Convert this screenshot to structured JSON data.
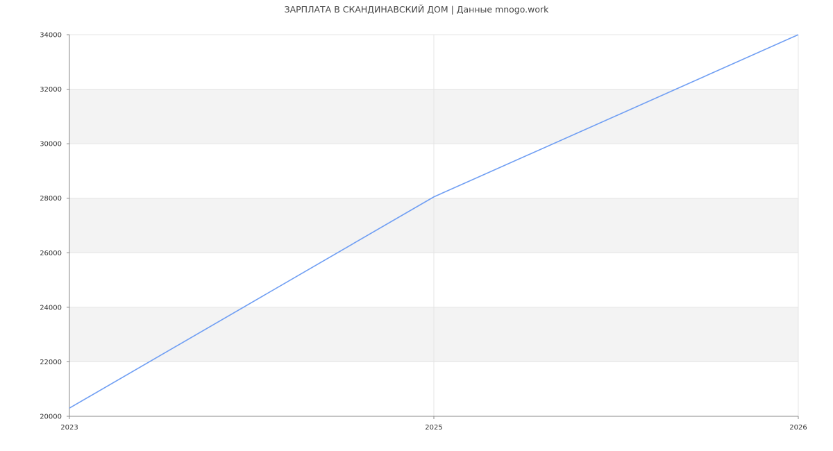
{
  "chart_data": {
    "type": "line",
    "title": "ЗАРПЛАТА В  СКАНДИНАВСКИЙ ДОМ | Данные mnogo.work",
    "xlabel": "",
    "ylabel": "",
    "categories": [
      "2023",
      "2025",
      "2026"
    ],
    "series": [
      {
        "values": [
          20300,
          28050,
          34000
        ]
      }
    ],
    "ylim": [
      20000,
      34000
    ],
    "yticks": [
      20000,
      22000,
      24000,
      26000,
      28000,
      30000,
      32000,
      34000
    ],
    "grid": true,
    "legend": "none",
    "colors": {
      "line": "#6f9ef3",
      "band": "#f3f3f3",
      "grid": "#e4e4e4",
      "axis": "#888888"
    }
  }
}
